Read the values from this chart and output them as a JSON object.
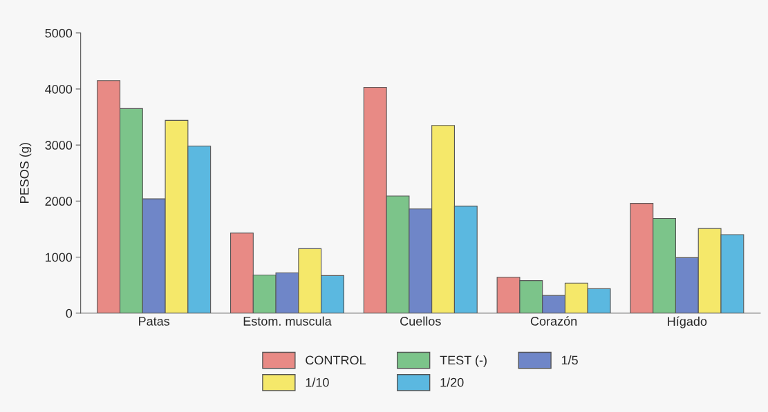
{
  "chart_data": {
    "type": "bar",
    "ylabel": "PESOS (g)",
    "categories": [
      "Patas",
      "Estom. muscula",
      "Cuellos",
      "Corazón",
      "Hígado"
    ],
    "series": [
      {
        "name": "CONTROL",
        "color": "#e88a85",
        "values": [
          4150,
          1430,
          4030,
          640,
          1960
        ]
      },
      {
        "name": "TEST (-)",
        "color": "#7cc48a",
        "values": [
          3650,
          680,
          2090,
          580,
          1690
        ]
      },
      {
        "name": "1/5",
        "color": "#6f86c8",
        "values": [
          2040,
          720,
          1860,
          315,
          990
        ]
      },
      {
        "name": "1/10",
        "color": "#f5e86a",
        "values": [
          3440,
          1150,
          3350,
          535,
          1510
        ]
      },
      {
        "name": "1/20",
        "color": "#5bb8e0",
        "values": [
          2980,
          670,
          1910,
          435,
          1400
        ]
      }
    ],
    "ylim": [
      0,
      5000
    ],
    "yticks": [
      0,
      1000,
      2000,
      3000,
      4000,
      5000
    ],
    "grid": false,
    "legend": "bottom"
  }
}
